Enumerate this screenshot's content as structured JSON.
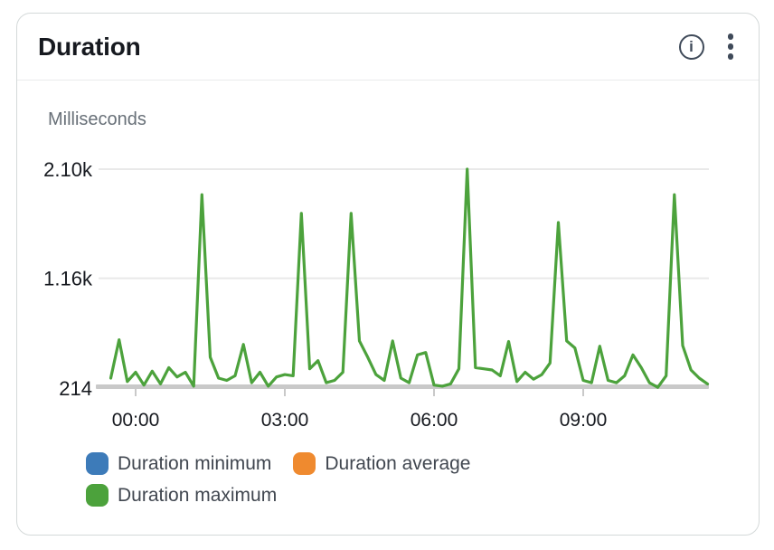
{
  "widget": {
    "title": "Duration",
    "icons": {
      "info": "i"
    }
  },
  "legend": {
    "items": [
      {
        "label": "Duration minimum",
        "color": "#3d7bb9"
      },
      {
        "label": "Duration average",
        "color": "#ef8a2f"
      },
      {
        "label": "Duration maximum",
        "color": "#4ca23c"
      }
    ]
  },
  "chart_data": {
    "type": "line",
    "title": "Duration",
    "ylabel": "Milliseconds",
    "grid": true,
    "legend_position": "bottom",
    "ylim": [
      214,
      2100
    ],
    "time_range": [
      "23:30",
      "11:30"
    ],
    "y_axis": {
      "ticks": [
        {
          "value": 2100,
          "label": "2.10k"
        },
        {
          "value": 1160,
          "label": "1.16k"
        },
        {
          "value": 214,
          "label": "214"
        }
      ]
    },
    "x_axis": {
      "ticks": [
        "00:00",
        "03:00",
        "06:00",
        "09:00"
      ],
      "hours_per_tick": 3
    },
    "series": [
      {
        "name": "Duration minimum",
        "color": "#3d7bb9",
        "visible_in_plot": false,
        "points": []
      },
      {
        "name": "Duration average",
        "color": "#ef8a2f",
        "visible_in_plot": false,
        "points": []
      },
      {
        "name": "Duration maximum",
        "color": "#4ca23c",
        "visible_in_plot": true,
        "points": [
          [
            "23:30",
            300
          ],
          [
            "23:40",
            630
          ],
          [
            "23:50",
            270
          ],
          [
            "00:00",
            350
          ],
          [
            "00:10",
            240
          ],
          [
            "00:20",
            360
          ],
          [
            "00:30",
            250
          ],
          [
            "00:40",
            390
          ],
          [
            "00:50",
            310
          ],
          [
            "01:00",
            350
          ],
          [
            "01:10",
            230
          ],
          [
            "01:20",
            1880
          ],
          [
            "01:30",
            480
          ],
          [
            "01:40",
            300
          ],
          [
            "01:50",
            280
          ],
          [
            "02:00",
            320
          ],
          [
            "02:10",
            590
          ],
          [
            "02:20",
            260
          ],
          [
            "02:30",
            350
          ],
          [
            "02:40",
            230
          ],
          [
            "02:50",
            310
          ],
          [
            "03:00",
            330
          ],
          [
            "03:10",
            320
          ],
          [
            "03:20",
            1720
          ],
          [
            "03:30",
            380
          ],
          [
            "03:40",
            450
          ],
          [
            "03:50",
            260
          ],
          [
            "04:00",
            280
          ],
          [
            "04:10",
            350
          ],
          [
            "04:20",
            1720
          ],
          [
            "04:30",
            620
          ],
          [
            "04:40",
            480
          ],
          [
            "04:50",
            330
          ],
          [
            "05:00",
            280
          ],
          [
            "05:10",
            620
          ],
          [
            "05:20",
            300
          ],
          [
            "05:30",
            260
          ],
          [
            "05:40",
            500
          ],
          [
            "05:50",
            520
          ],
          [
            "06:00",
            240
          ],
          [
            "06:10",
            230
          ],
          [
            "06:20",
            250
          ],
          [
            "06:30",
            380
          ],
          [
            "06:40",
            2100
          ],
          [
            "06:50",
            390
          ],
          [
            "07:00",
            380
          ],
          [
            "07:10",
            370
          ],
          [
            "07:20",
            320
          ],
          [
            "07:30",
            615
          ],
          [
            "07:40",
            270
          ],
          [
            "07:50",
            350
          ],
          [
            "08:00",
            290
          ],
          [
            "08:10",
            330
          ],
          [
            "08:20",
            430
          ],
          [
            "08:30",
            1640
          ],
          [
            "08:40",
            620
          ],
          [
            "08:50",
            560
          ],
          [
            "09:00",
            280
          ],
          [
            "09:10",
            260
          ],
          [
            "09:20",
            575
          ],
          [
            "09:30",
            280
          ],
          [
            "09:40",
            260
          ],
          [
            "09:50",
            320
          ],
          [
            "10:00",
            500
          ],
          [
            "10:10",
            390
          ],
          [
            "10:20",
            260
          ],
          [
            "10:30",
            220
          ],
          [
            "10:40",
            320
          ],
          [
            "10:50",
            1880
          ],
          [
            "11:00",
            580
          ],
          [
            "11:10",
            370
          ],
          [
            "11:20",
            300
          ],
          [
            "11:30",
            250
          ]
        ]
      }
    ]
  }
}
